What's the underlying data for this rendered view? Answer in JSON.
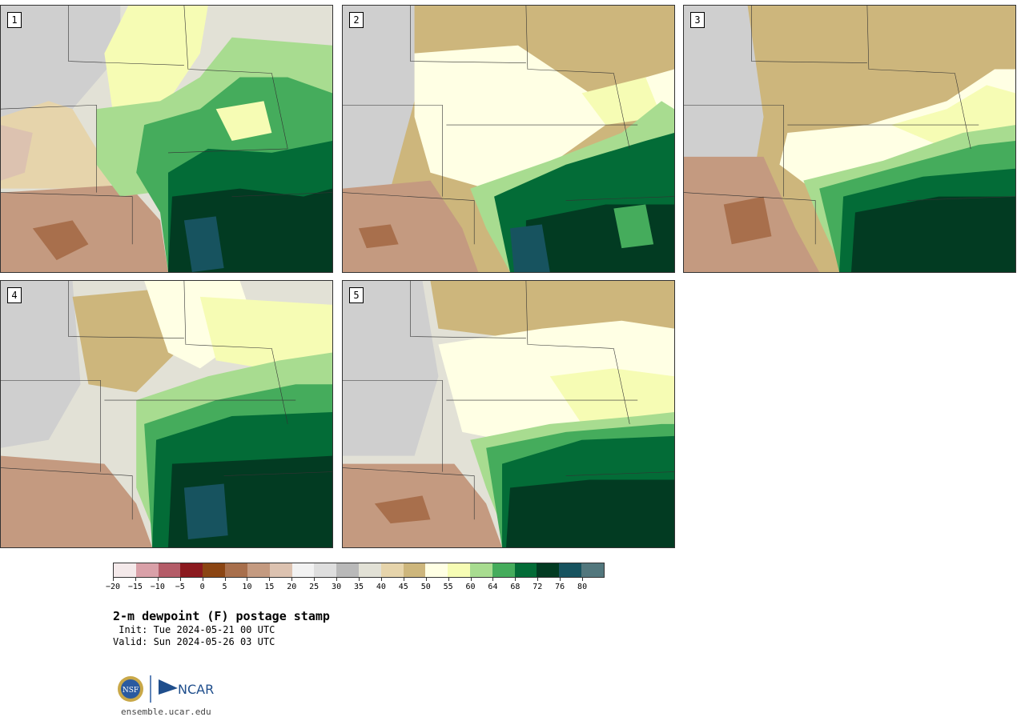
{
  "panels": [
    {
      "label": "1"
    },
    {
      "label": "2"
    },
    {
      "label": "3"
    },
    {
      "label": "4"
    },
    {
      "label": "5"
    }
  ],
  "colorbar": {
    "colors": [
      "#f4e9ea",
      "#d9a0a8",
      "#b45c68",
      "#8b1a1f",
      "#8b4513",
      "#a86f4c",
      "#c49a80",
      "#dcc2b0",
      "#f2f2f2",
      "#dedede",
      "#b9b9b9",
      "#e2e1d6",
      "#e6d4ab",
      "#cdb67c",
      "#ffffe4",
      "#f6fcb4",
      "#a8dc90",
      "#45ac5c",
      "#036c37",
      "#023b22",
      "#17535f",
      "#52777d"
    ],
    "ticks": [
      "−20",
      "−15",
      "−10",
      "−5",
      "0",
      "5",
      "10",
      "15",
      "20",
      "25",
      "30",
      "35",
      "40",
      "45",
      "50",
      "55",
      "60",
      "64",
      "68",
      "72",
      "76",
      "80"
    ]
  },
  "title": "2-m dewpoint (F) postage stamp",
  "init": " Init: Tue 2024-05-21 00 UTC",
  "valid": "Valid: Sun 2024-05-26 03 UTC",
  "logos": {
    "nsf": "NSF",
    "ncar": "NCAR"
  },
  "url": "ensemble.ucar.edu"
}
